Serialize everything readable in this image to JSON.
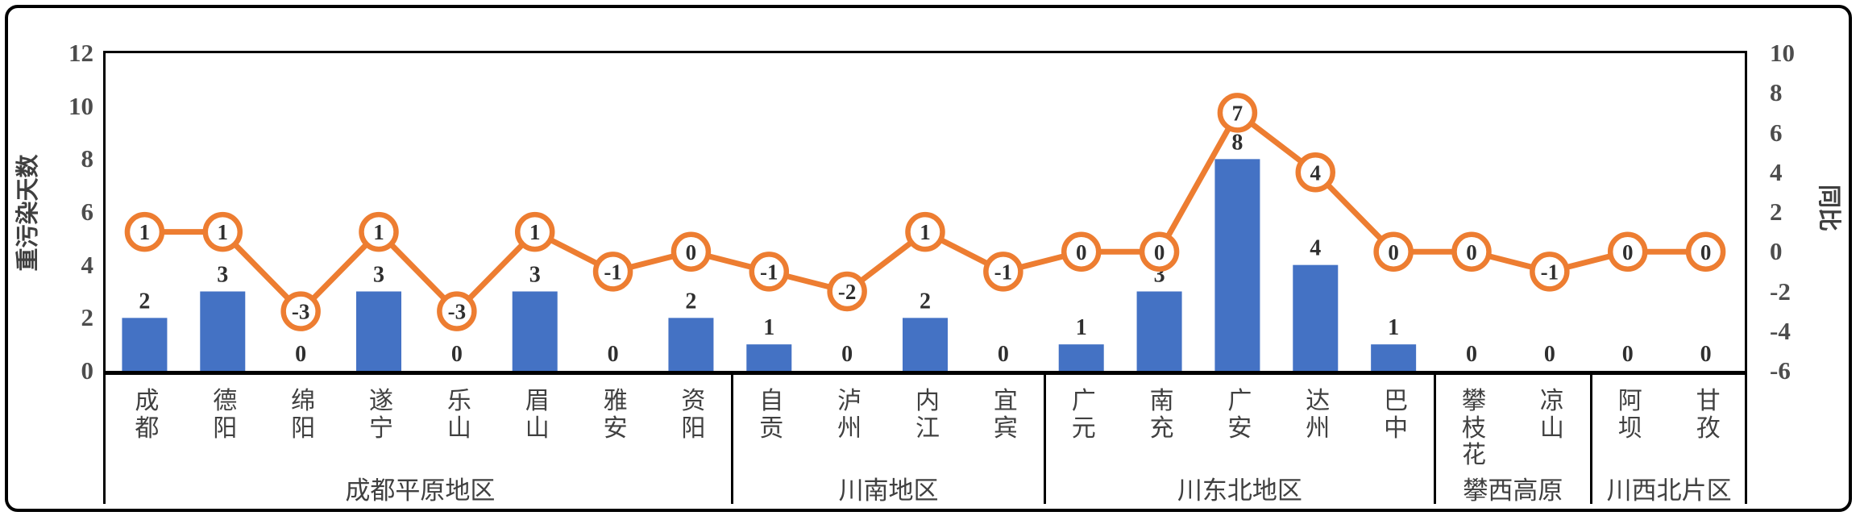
{
  "legend": {
    "bar_label": "重污染天数",
    "line_label": "同比"
  },
  "left_axis": {
    "title": "重污染天数",
    "min": 0,
    "max": 12,
    "step": 2,
    "ticks": [
      "0",
      "2",
      "4",
      "6",
      "8",
      "10",
      "12"
    ]
  },
  "right_axis": {
    "title": "同比",
    "min": -6,
    "max": 10,
    "step": 2,
    "ticks": [
      "-6",
      "-4",
      "-2",
      "0",
      "2",
      "4",
      "6",
      "8",
      "10"
    ]
  },
  "colors": {
    "bar": "#4472C4",
    "line": "#ED7D31",
    "marker_fill": "#ffffff",
    "data_label": "#2f2f2f",
    "axis_text": "#4d4d4d",
    "category_text": "#404040",
    "frame": "#000000"
  },
  "chart_data": {
    "type": "bar",
    "subtype": "bar+line combo, dual y-axes",
    "title": "",
    "categories": [
      "成都",
      "德阳",
      "绵阳",
      "遂宁",
      "乐山",
      "眉山",
      "雅安",
      "资阳",
      "自贡",
      "泸州",
      "内江",
      "宜宾",
      "广元",
      "南充",
      "广安",
      "达州",
      "巴中",
      "攀枝花",
      "凉山",
      "阿坝",
      "甘孜"
    ],
    "groups": [
      {
        "label": "成都平原地区",
        "count": 8
      },
      {
        "label": "川南地区",
        "count": 4
      },
      {
        "label": "川东北地区",
        "count": 5
      },
      {
        "label": "攀西高原",
        "count": 2
      },
      {
        "label": "川西北片区",
        "count": 2
      }
    ],
    "series": [
      {
        "name": "重污染天数",
        "type": "bar",
        "axis": "left",
        "values": [
          2,
          3,
          0,
          3,
          0,
          3,
          0,
          2,
          1,
          0,
          2,
          0,
          1,
          3,
          8,
          4,
          1,
          0,
          0,
          0,
          0
        ]
      },
      {
        "name": "同比",
        "type": "line",
        "axis": "right",
        "values": [
          1,
          1,
          -3,
          1,
          -3,
          1,
          -1,
          0,
          -1,
          -2,
          1,
          -1,
          0,
          0,
          7,
          4,
          0,
          0,
          -1,
          0,
          0
        ]
      }
    ],
    "ylabel_left": "重污染天数",
    "ylabel_right": "同比",
    "ylim_left": [
      0,
      12
    ],
    "ylim_right": [
      -6,
      10
    ],
    "grid": false,
    "legend_position": "top-left",
    "data_labels": "bars labeled above; line values labeled inside circular markers"
  }
}
